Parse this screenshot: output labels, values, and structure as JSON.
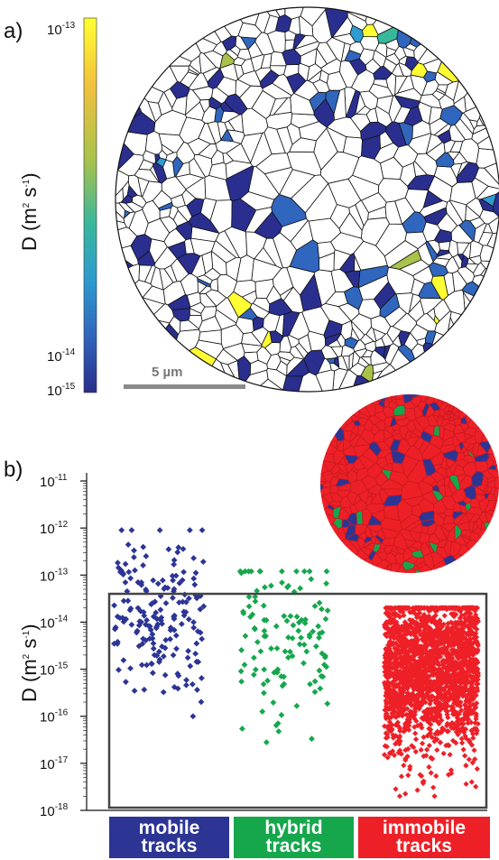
{
  "panels": {
    "a_label": "a)",
    "b_label": "b)"
  },
  "colorbar": {
    "label": "D (m² s⁻¹)",
    "label_base": "D (m",
    "label_mid": " s",
    "label_end": ")",
    "label_sup1": "2",
    "label_sup2": "-1",
    "ticks": [
      {
        "base": "10",
        "exp": "-13"
      },
      {
        "base": "10",
        "exp": "-14"
      },
      {
        "base": "10",
        "exp": "-15"
      }
    ],
    "colors": [
      "#ffff33",
      "#f5c13a",
      "#a8c24a",
      "#38b89a",
      "#2f9bd1",
      "#3066bd",
      "#2a2f8f"
    ]
  },
  "scale_bar": {
    "label": "5 µm",
    "color": "#8a8a8a"
  },
  "colors": {
    "mobile": "#2c3594",
    "hybrid": "#16a74d",
    "immobile": "#ee2027",
    "outline": "#111111",
    "frame": "#444444"
  },
  "chart_data": {
    "type": "scatter",
    "xlabel": "",
    "ylabel": "D (m² s⁻¹)",
    "ylabel_base": "D (m",
    "ylabel_mid": " s",
    "ylabel_end": ")",
    "ylabel_sup1": "2",
    "ylabel_sup2": "-1",
    "yscale": "log",
    "ylim": [
      1e-18,
      1e-11
    ],
    "yticks": [
      {
        "base": "10",
        "exp": "-11"
      },
      {
        "base": "10",
        "exp": "-12"
      },
      {
        "base": "10",
        "exp": "-13"
      },
      {
        "base": "10",
        "exp": "-14"
      },
      {
        "base": "10",
        "exp": "-15"
      },
      {
        "base": "10",
        "exp": "-16"
      },
      {
        "base": "10",
        "exp": "-17"
      },
      {
        "base": "10",
        "exp": "-18"
      }
    ],
    "categories": [
      "mobile tracks",
      "hybrid tracks",
      "immobile tracks"
    ],
    "category_lines": [
      [
        "mobile",
        "tracks"
      ],
      [
        "hybrid",
        "tracks"
      ],
      [
        "immobile",
        "tracks"
      ]
    ],
    "series": [
      {
        "name": "mobile tracks",
        "category": 0,
        "approx_count": 180,
        "range": [
          1e-16,
          9e-13
        ],
        "median": 1.5e-14
      },
      {
        "name": "hybrid tracks",
        "category": 1,
        "approx_count": 120,
        "range": [
          1.5e-17,
          1.2e-13
        ],
        "median": 5e-15
      },
      {
        "name": "immobile tracks",
        "category": 2,
        "approx_count": 2000,
        "range": [
          2e-18,
          2e-14
        ],
        "median": 1e-15
      }
    ],
    "grid": false,
    "highlight_box": {
      "ymin": 1e-18,
      "ymax": 4e-14
    }
  }
}
